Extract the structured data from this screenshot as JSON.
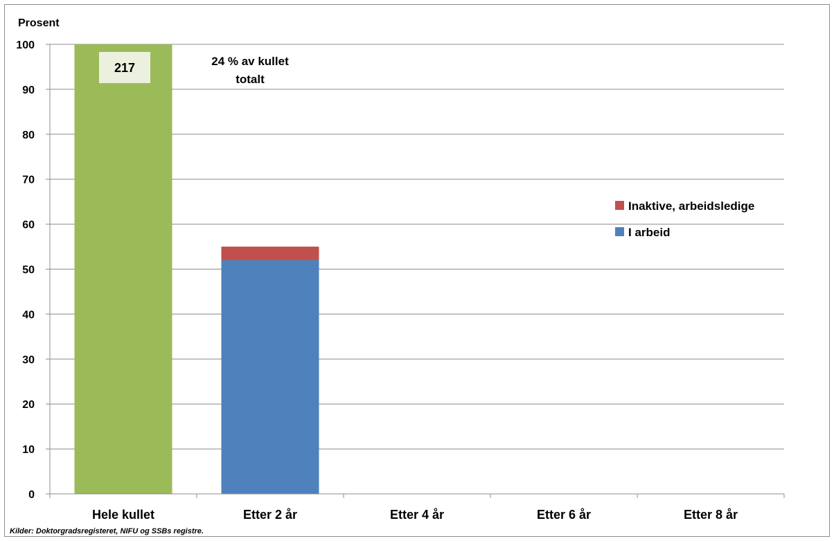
{
  "chart_data": {
    "type": "bar",
    "stacked": true,
    "ylabel": "Prosent",
    "ylim": [
      0,
      100
    ],
    "yticks": [
      0,
      10,
      20,
      30,
      40,
      50,
      60,
      70,
      80,
      90,
      100
    ],
    "grid": true,
    "categories": [
      "Hele kullet",
      "Etter 2 år",
      "Etter 4 år",
      "Etter 6 år",
      "Etter 8 år"
    ],
    "series": [
      {
        "name": "",
        "color": "#9bbb59",
        "values": [
          100,
          null,
          null,
          null,
          null
        ]
      },
      {
        "name": "I arbeid",
        "color": "#4f81bd",
        "values": [
          null,
          52,
          null,
          null,
          null
        ]
      },
      {
        "name": "Inaktive, arbeidsledige",
        "color": "#c0504d",
        "values": [
          null,
          3,
          null,
          null,
          null
        ]
      }
    ],
    "legend": {
      "position": "right",
      "entries": [
        {
          "label": "Inaktive, arbeidsledige",
          "color": "#c0504d"
        },
        {
          "label": "I arbeid",
          "color": "#4f81bd"
        }
      ]
    },
    "annotations": {
      "count_box": "217",
      "count_box_color": "#ebf1de",
      "note_line1": "24 % av kullet",
      "note_line2": "totalt"
    },
    "source": "Kilder: Doktorgradsregisteret,  NIFU og SSBs registre."
  }
}
